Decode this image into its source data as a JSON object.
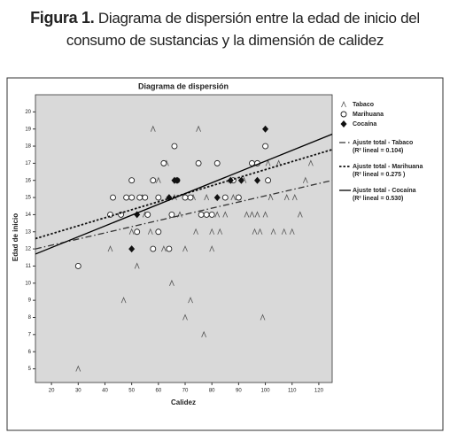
{
  "caption": {
    "label": "Figura 1.",
    "text": "Diagrama de dispersión entre la edad de inicio del consumo de sustancias y la dimensión de calidez"
  },
  "chart_data": {
    "type": "scatter",
    "title": "Diagrama de dispersión",
    "x_label": "Calidez",
    "y_label": "Edad de inicio",
    "xlim": [
      14,
      125
    ],
    "ylim": [
      4.2,
      21
    ],
    "xticks": [
      20,
      30,
      40,
      50,
      60,
      70,
      80,
      90,
      100,
      110,
      120
    ],
    "yticks": [
      5,
      6,
      7,
      8,
      9,
      10,
      11,
      12,
      13,
      14,
      15,
      16,
      17,
      18,
      19,
      20
    ],
    "background": "#d9d9d9",
    "series": [
      {
        "name": "Tabaco",
        "mode": "markers",
        "marker": "caret",
        "color": "#555555",
        "x": [
          30,
          47,
          52,
          57,
          58,
          62,
          65,
          70,
          72,
          75,
          77,
          80,
          83,
          85,
          88,
          90,
          93,
          95,
          97,
          99,
          100,
          101,
          103,
          105,
          107,
          108,
          110,
          113,
          115,
          117,
          42,
          50,
          54,
          60,
          63,
          68,
          73,
          78,
          82,
          87,
          92,
          98,
          55,
          66,
          70,
          74,
          80,
          96,
          102,
          111
        ],
        "values": [
          5,
          9,
          11,
          13,
          19,
          12,
          10,
          8,
          9,
          19,
          7,
          12,
          13,
          14,
          15,
          15,
          14,
          14,
          14,
          8,
          14,
          17,
          13,
          17,
          13,
          15,
          13,
          14,
          16,
          17,
          12,
          13,
          15,
          16,
          17,
          14,
          15,
          15,
          14,
          16,
          16,
          13,
          14,
          15,
          12,
          13,
          13,
          13,
          15,
          15
        ]
      },
      {
        "name": "Marihuana",
        "mode": "markers",
        "marker": "circle",
        "color": "#222222",
        "x": [
          30,
          42,
          43,
          46,
          48,
          50,
          50,
          52,
          53,
          55,
          56,
          58,
          58,
          60,
          62,
          64,
          65,
          66,
          67,
          70,
          72,
          75,
          76,
          78,
          80,
          82,
          85,
          88,
          90,
          95,
          97,
          100,
          101,
          60
        ],
        "values": [
          11,
          14,
          15,
          14,
          15,
          15,
          16,
          13,
          15,
          15,
          14,
          16,
          12,
          15,
          17,
          12,
          14,
          18,
          16,
          15,
          15,
          17,
          14,
          14,
          14,
          17,
          15,
          16,
          15,
          17,
          17,
          18,
          16,
          13
        ]
      },
      {
        "name": "Cocaína",
        "mode": "markers",
        "marker": "diamond",
        "color": "#111111",
        "x": [
          50,
          52,
          64,
          66,
          67,
          82,
          87,
          91,
          97,
          100
        ],
        "values": [
          12,
          14,
          15,
          16,
          16,
          15,
          16,
          16,
          16,
          19
        ]
      },
      {
        "name": "Ajuste total - Tabaco",
        "r2_label": "(R² lineal = 0.104)",
        "mode": "line",
        "dash": "7 3 1.5 3",
        "color": "#333333",
        "x": [
          14,
          125
        ],
        "values": [
          12.0,
          16.0
        ]
      },
      {
        "name": "Ajuste total - Marihuana",
        "r2_label": "(R² lineal = 0.275 )",
        "mode": "line",
        "dash": "2.5 2",
        "color": "#111111",
        "x": [
          14,
          125
        ],
        "values": [
          12.6,
          17.8
        ]
      },
      {
        "name": "Ajuste total - Cocaína",
        "r2_label": "(R² lineal = 0.530)",
        "mode": "line",
        "dash": "none",
        "color": "#000000",
        "x": [
          14,
          125
        ],
        "values": [
          11.7,
          18.7
        ]
      }
    ]
  }
}
